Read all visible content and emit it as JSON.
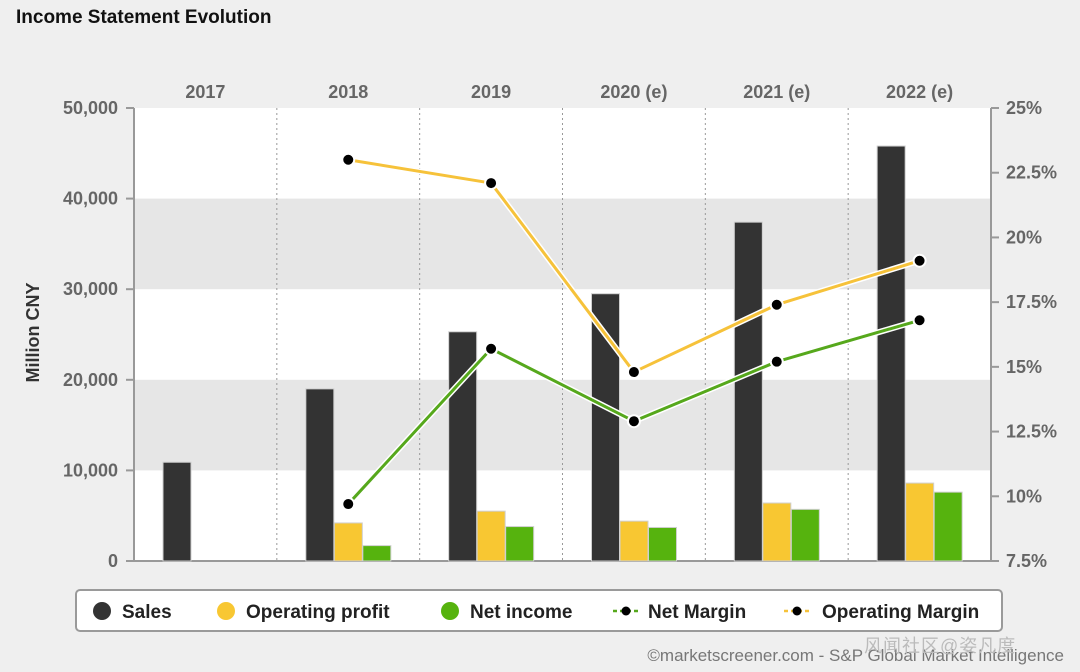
{
  "title": "Income Statement Evolution",
  "footer": "©marketscreener.com - S&P Global Market Intelligence",
  "watermark": "风闻社区@姿凡度",
  "colors": {
    "sales": "#333333",
    "operating_profit": "#f8c732",
    "net_income": "#56b30e",
    "net_margin": "#56a81c",
    "operating_margin": "#f6c23a",
    "band": "#e6e6e6",
    "plot_bg": "#ffffff"
  },
  "chart_data": {
    "type": "bar",
    "title": "Income Statement Evolution",
    "categories": [
      "2017",
      "2018",
      "2019",
      "2020 (e)",
      "2021 (e)",
      "2022 (e)"
    ],
    "ylabel": "Million CNY",
    "ylim": [
      0,
      50000
    ],
    "yticks": [
      "0",
      "10,000",
      "20,000",
      "30,000",
      "40,000",
      "50,000"
    ],
    "y2lim": [
      7.5,
      25
    ],
    "y2ticks": [
      "7.5%",
      "10%",
      "12.5%",
      "15%",
      "17.5%",
      "20%",
      "22.5%",
      "25%"
    ],
    "series": [
      {
        "name": "Sales",
        "kind": "bar",
        "values": [
          10900,
          19000,
          25300,
          29500,
          37400,
          45800
        ]
      },
      {
        "name": "Operating profit",
        "kind": "bar",
        "values": [
          null,
          4200,
          5500,
          4400,
          6400,
          8600
        ]
      },
      {
        "name": "Net income",
        "kind": "bar",
        "values": [
          null,
          1700,
          3800,
          3700,
          5700,
          7600
        ]
      },
      {
        "name": "Net Margin",
        "kind": "line",
        "axis": "right",
        "values": [
          null,
          9.7,
          15.7,
          12.9,
          15.2,
          16.8
        ]
      },
      {
        "name": "Operating Margin",
        "kind": "line",
        "axis": "right",
        "values": [
          null,
          23.0,
          22.1,
          14.8,
          17.4,
          19.1
        ]
      }
    ],
    "legend": [
      "Sales",
      "Operating profit",
      "Net income",
      "Net Margin",
      "Operating Margin"
    ],
    "legend_position": "bottom"
  }
}
